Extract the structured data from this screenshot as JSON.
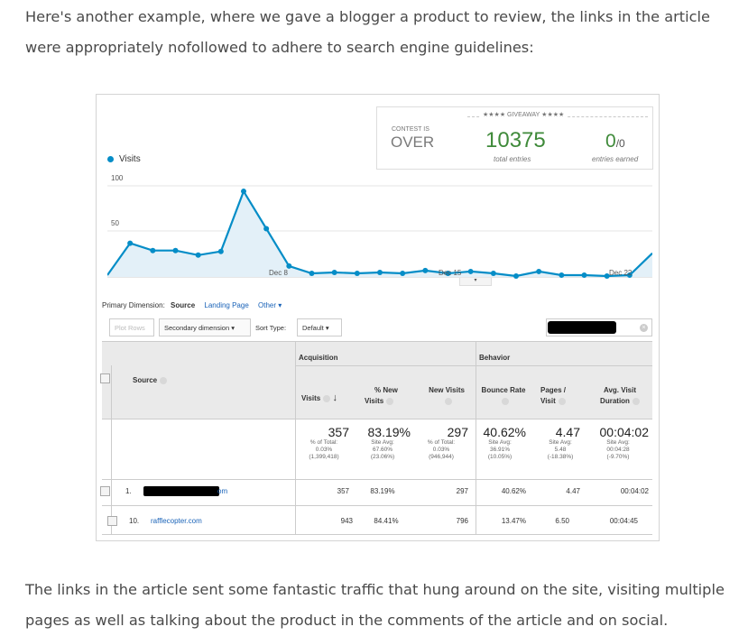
{
  "article": {
    "intro": "Here's another example, where we gave a blogger a product to review, the links in the article were appropriately nofollowed to adhere to search engine guidelines:",
    "outro": "The links in the article sent some fantastic traffic that hung around on the site, visiting multiple pages as well as talking about the product in the comments of the article and on social."
  },
  "contest": {
    "banner": "★★★★ GIVEAWAY ★★★★",
    "status_label": "CONTEST IS",
    "status_value": "OVER",
    "entries_value": "10375",
    "entries_label": "total entries",
    "earned_value": "0",
    "earned_suffix": "/0",
    "earned_label": "entries earned"
  },
  "chart": {
    "legend": "Visits",
    "y_ticks": [
      "100",
      "50"
    ],
    "x_ticks": [
      "Dec 8",
      "Dec 15",
      "Dec 22"
    ]
  },
  "chart_data": {
    "type": "area",
    "series": [
      {
        "name": "Visits",
        "values": [
          2,
          37,
          29,
          29,
          24,
          28,
          94,
          53,
          12,
          4,
          5,
          4,
          5,
          4,
          7,
          4,
          6,
          4,
          1,
          6,
          2,
          2,
          1,
          2,
          26
        ]
      }
    ],
    "ylim": [
      0,
      110
    ],
    "grid": true,
    "legend": "top-left"
  },
  "controls": {
    "primary_dimension_label": "Primary Dimension:",
    "primary_dimension_value": "Source",
    "landing_page": "Landing Page",
    "other": "Other",
    "plot_rows": "Plot Rows",
    "secondary_dimension": "Secondary dimension",
    "sort_type_label": "Sort Type:",
    "sort_value": "Default"
  },
  "table": {
    "group_acquisition": "Acquisition",
    "group_behavior": "Behavior",
    "source_header": "Source",
    "headers": {
      "visits": "Visits",
      "pct_new_line1": "% New",
      "pct_new_line2": "Visits",
      "new_visits": "New Visits",
      "bounce_rate": "Bounce Rate",
      "pages_line1": "Pages /",
      "pages_line2": "Visit",
      "avg_line1": "Avg. Visit",
      "avg_line2": "Duration"
    },
    "totals": {
      "visits": "357",
      "visits_sub": [
        "% of Total:",
        "0.03%",
        "(1,399,418)"
      ],
      "pct_new": "83.19%",
      "pct_new_sub": [
        "Site Avg:",
        "67.60%",
        "(23.06%)"
      ],
      "new_visits": "297",
      "new_visits_sub": [
        "% of Total:",
        "0.03%",
        "(946,944)"
      ],
      "bounce": "40.62%",
      "bounce_sub": [
        "Site Avg:",
        "36.91%",
        "(10.05%)"
      ],
      "pages": "4.47",
      "pages_sub": [
        "Site Avg:",
        "5.48",
        "(-18.38%)"
      ],
      "avg": "00:04:02",
      "avg_sub": [
        "Site Avg:",
        "00:04:28",
        "(-9.70%)"
      ]
    },
    "rows": [
      {
        "index": "1.",
        "source": "om",
        "visits": "357",
        "pct_new": "83.19%",
        "new_visits": "297",
        "bounce": "40.62%",
        "pages": "4.47",
        "avg": "00:04:02"
      },
      {
        "index": "10.",
        "source": "rafflecopter.com",
        "visits": "943",
        "pct_new": "84.41%",
        "new_visits": "796",
        "bounce": "13.47%",
        "pages": "6.50",
        "avg": "00:04:45"
      }
    ]
  }
}
